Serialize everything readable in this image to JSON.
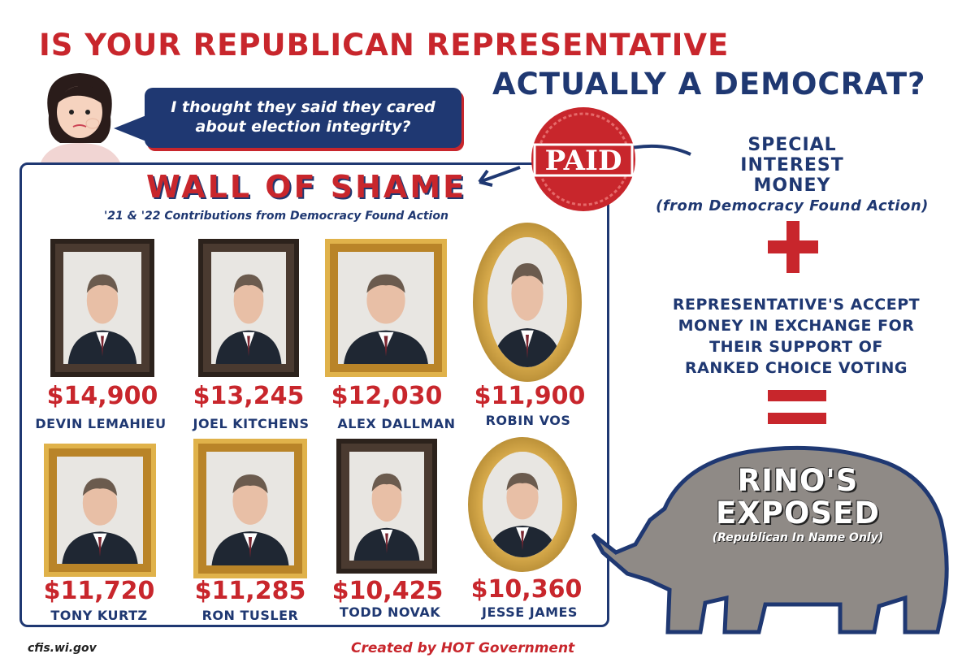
{
  "headline": {
    "line1": "IS YOUR REPUBLICAN REPRESENTATIVE",
    "line2": "ACTUALLY A DEMOCRAT?"
  },
  "speech_bubble": {
    "line1": "I thought they said they cared",
    "line2": "about election integrity?"
  },
  "stamp": {
    "text": "PAID"
  },
  "wall": {
    "title": "WALL OF SHAME",
    "subtitle": "'21 & '22 Contributions from Democracy Found Action",
    "people": [
      {
        "amount": "$14,900",
        "name": "DEVIN LEMAHIEU"
      },
      {
        "amount": "$13,245",
        "name": "JOEL KITCHENS"
      },
      {
        "amount": "$12,030",
        "name": "ALEX DALLMAN"
      },
      {
        "amount": "$11,900",
        "name": "ROBIN VOS"
      },
      {
        "amount": "$11,720",
        "name": "TONY KURTZ"
      },
      {
        "amount": "$11,285",
        "name": "RON TUSLER"
      },
      {
        "amount": "$10,425",
        "name": "TODD NOVAK"
      },
      {
        "amount": "$10,360",
        "name": "JESSE JAMES"
      }
    ]
  },
  "equation": {
    "special_l1": "SPECIAL",
    "special_l2": "INTEREST",
    "special_l3": "MONEY",
    "special_src": "(from Democracy Found Action)",
    "accept_l1": "REPRESENTATIVE'S ACCEPT",
    "accept_l2": "MONEY IN EXCHANGE FOR",
    "accept_l3": "THEIR SUPPORT OF",
    "accept_l4": "RANKED CHOICE VOTING"
  },
  "rino": {
    "title_l1": "RINO'S",
    "title_l2": "EXPOSED",
    "sub": "(Republican In Name Only)"
  },
  "footer": {
    "source": "cfis.wi.gov",
    "credit": "Created by HOT Government"
  },
  "colors": {
    "red": "#c8262c",
    "navy": "#1f3872",
    "gold": "#c9962c",
    "rhino": "#8f8a86"
  }
}
